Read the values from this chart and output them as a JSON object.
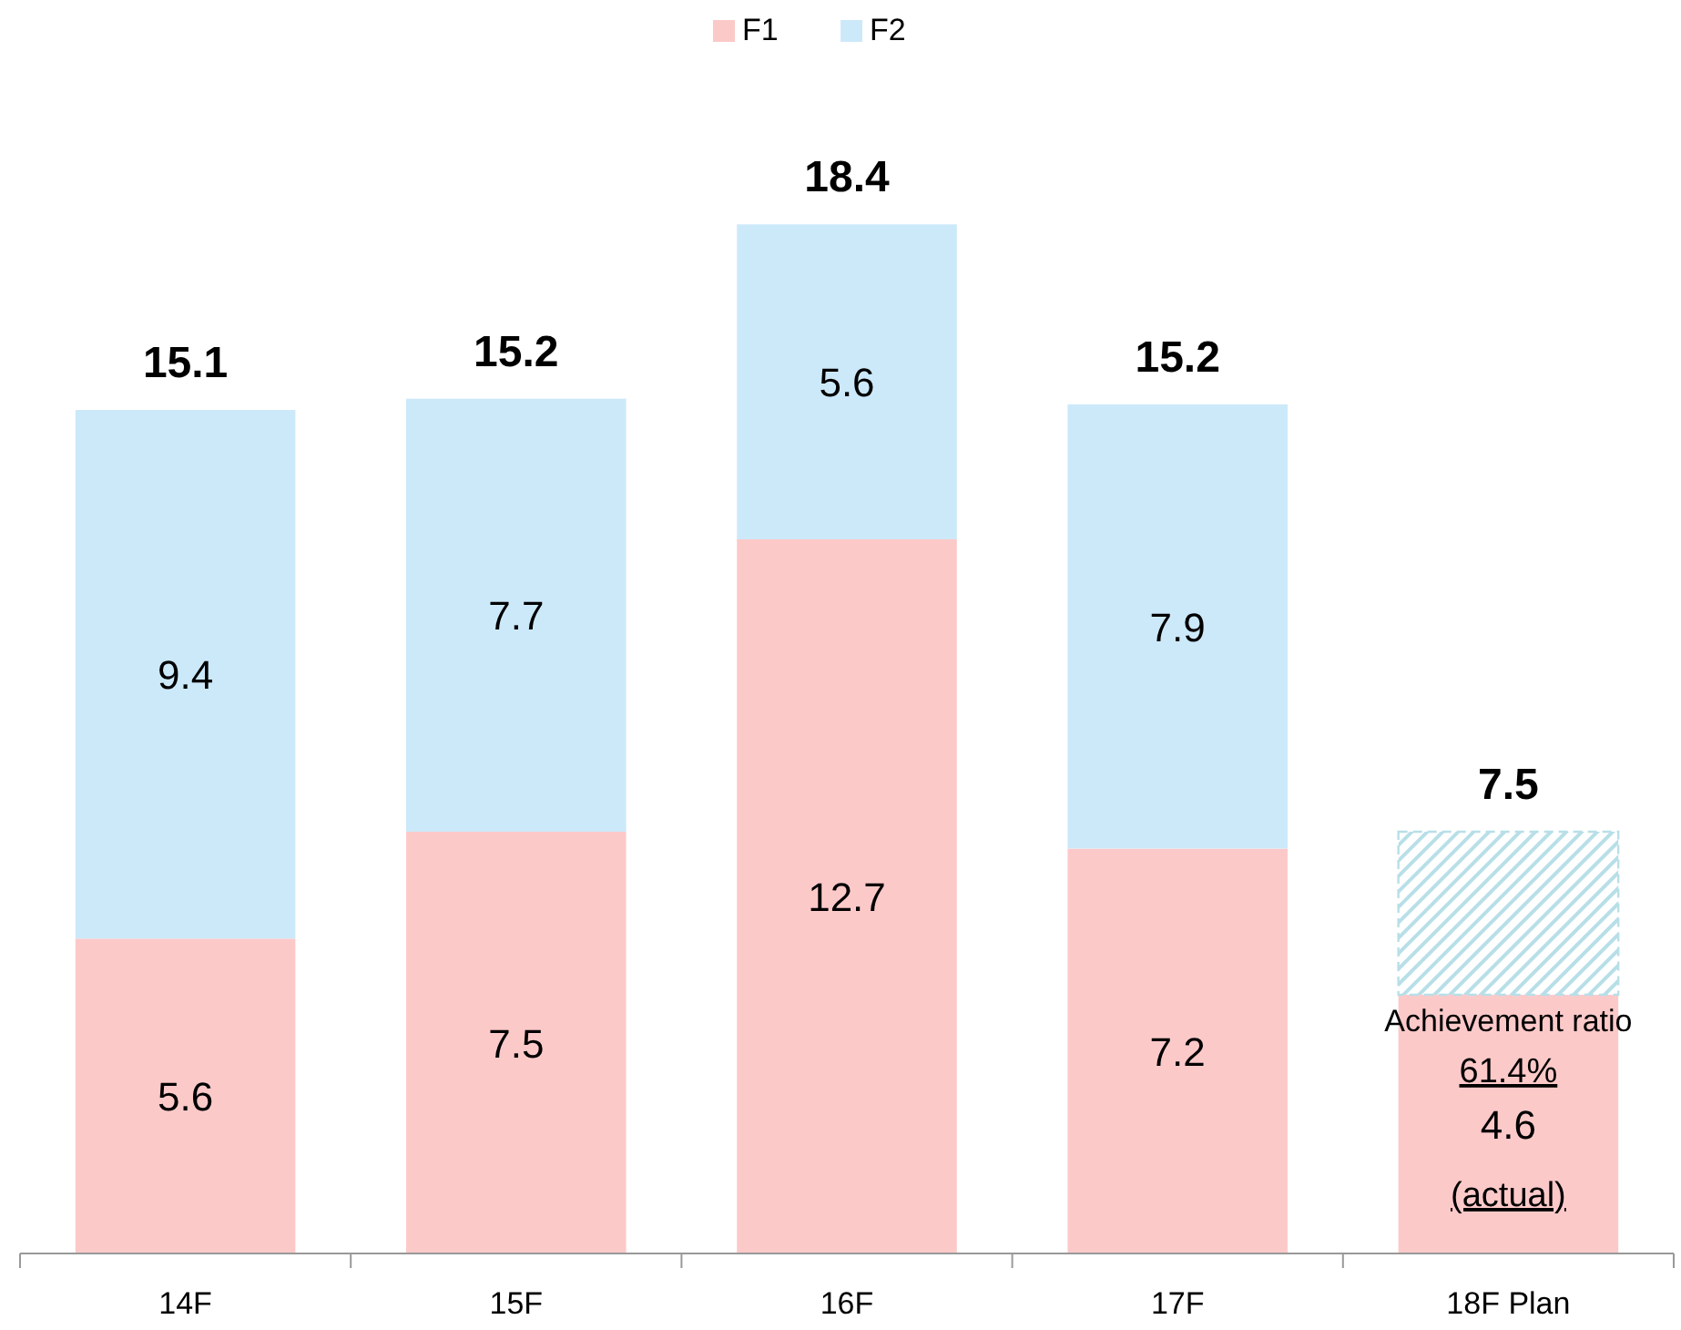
{
  "chart_data": {
    "type": "bar",
    "stacked": true,
    "categories": [
      "14F",
      "15F",
      "16F",
      "17F",
      "18F Plan"
    ],
    "series": [
      {
        "name": "F1",
        "color": "#fcc9c9",
        "values": [
          5.6,
          7.5,
          12.7,
          7.2,
          4.6
        ]
      },
      {
        "name": "F2",
        "color": "#cce9fa",
        "values": [
          9.4,
          7.7,
          5.6,
          7.9,
          null
        ]
      },
      {
        "color": "#b8dfe8",
        "line_style": "dashed",
        "values": [
          null,
          null,
          null,
          null,
          2.9
        ],
        "value_labels": [
          null,
          null,
          null,
          null,
          null
        ]
      }
    ],
    "data_labels": true,
    "totals": [
      "15.1",
      "15.2",
      "18.4",
      "15.2",
      "7.5"
    ],
    "tick_labels": "x",
    "legend": "top",
    "grid": false,
    "annotations": [
      "Achievement ratio",
      "61.4%",
      "(actual)"
    ]
  }
}
